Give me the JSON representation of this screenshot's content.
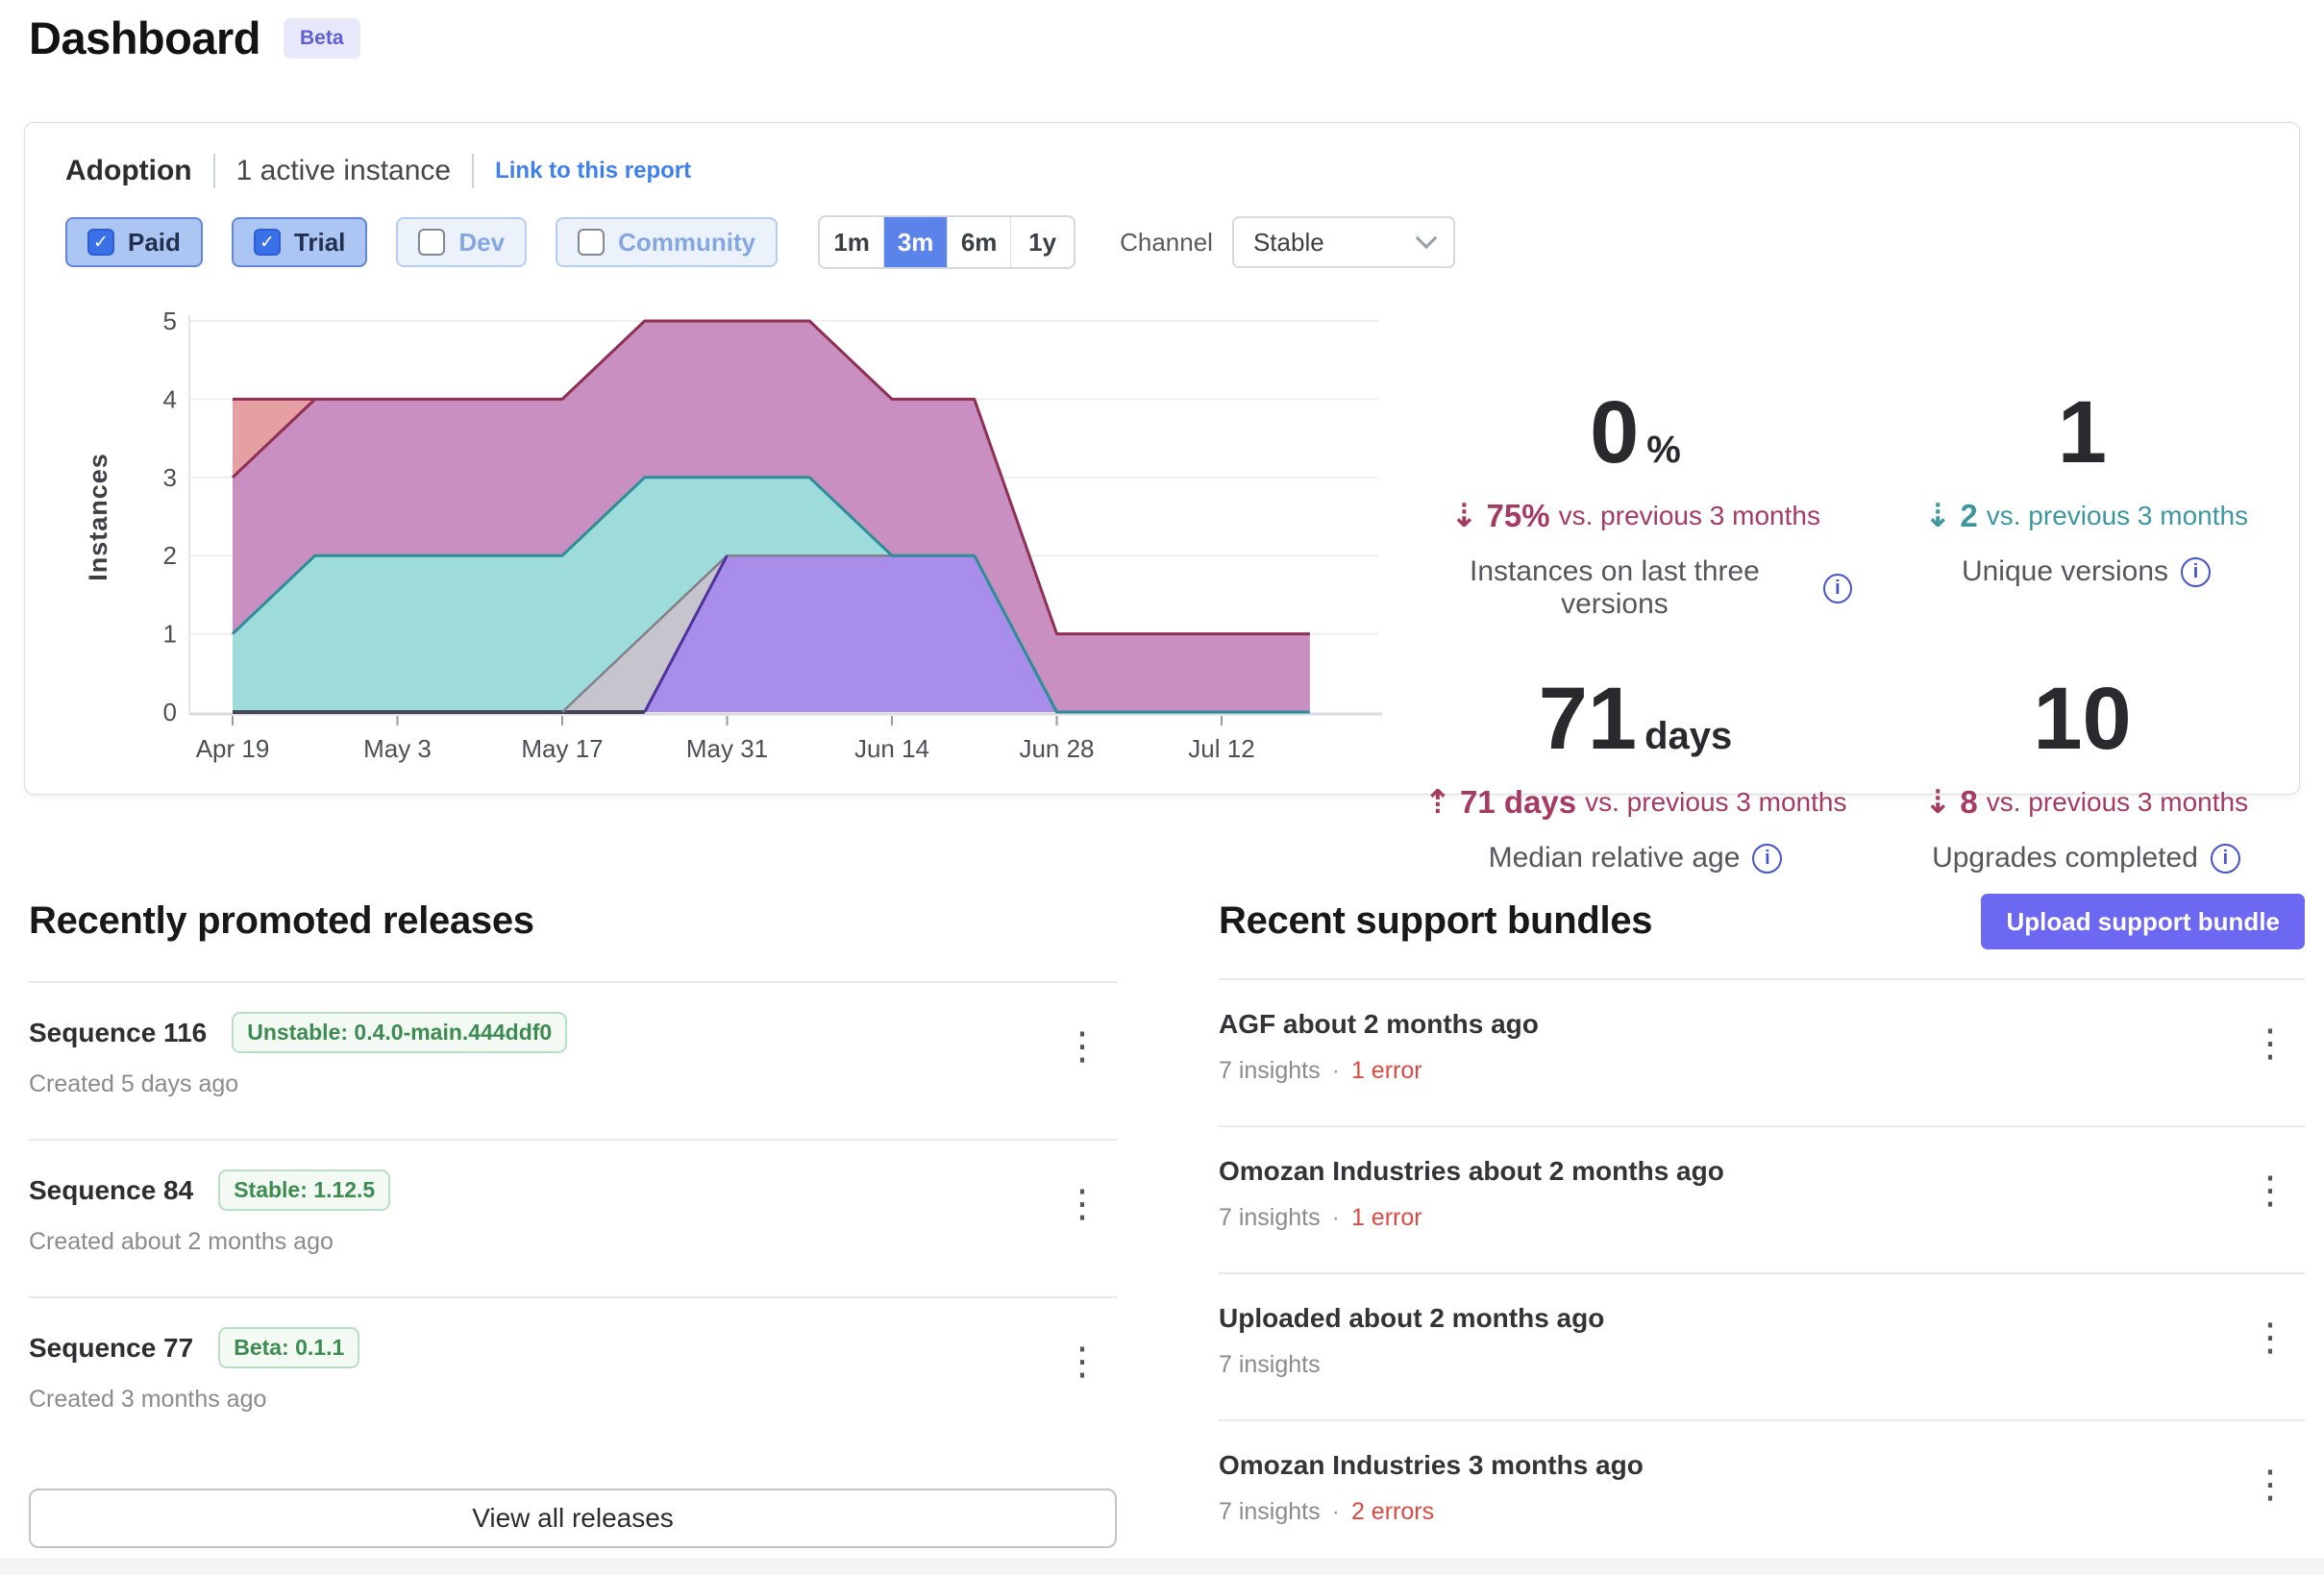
{
  "page": {
    "title": "Dashboard",
    "beta_badge": "Beta"
  },
  "icons": {
    "kebab": "⋮",
    "check": "✓",
    "arrow_down": "⇣",
    "arrow_up": "⇡",
    "info": "i",
    "dot": "·"
  },
  "colors": {
    "accent_blue": "#5b84ea",
    "link_blue": "#4080ee",
    "indigo_button": "#6d68f2",
    "trend_red": "#a53b5e",
    "trend_teal": "#3d96a0",
    "error_red": "#dd4a43",
    "badge_green": "#3e8b52",
    "beta_purple": "#5e5ed8"
  },
  "adoption": {
    "title": "Adoption",
    "subtitle": "1 active instance",
    "link": "Link to this report",
    "filters": [
      {
        "label": "Paid",
        "checked": true
      },
      {
        "label": "Trial",
        "checked": true
      },
      {
        "label": "Dev",
        "checked": false
      },
      {
        "label": "Community",
        "checked": false
      }
    ],
    "ranges": [
      {
        "label": "1m",
        "active": false
      },
      {
        "label": "3m",
        "active": true
      },
      {
        "label": "6m",
        "active": false
      },
      {
        "label": "1y",
        "active": false
      }
    ],
    "channel_label": "Channel",
    "channel_value": "Stable",
    "stats": [
      {
        "value": "0",
        "unit": "%",
        "direction": "down",
        "delta": "75%",
        "suffix": "vs. previous 3 months",
        "color": "#a53b5e",
        "label": "Instances on last three versions"
      },
      {
        "value": "1",
        "unit": "",
        "direction": "down",
        "delta": "2",
        "suffix": "vs. previous 3 months",
        "color": "#3d96a0",
        "label": "Unique versions"
      },
      {
        "value": "71",
        "unit": "days",
        "direction": "up",
        "delta": "71 days",
        "suffix": "vs. previous 3 months",
        "color": "#a53b5e",
        "label": "Median relative age"
      },
      {
        "value": "10",
        "unit": "",
        "direction": "down",
        "delta": "8",
        "suffix": "vs. previous 3 months",
        "color": "#a53b5e",
        "label": "Upgrades completed"
      }
    ]
  },
  "chart_data": {
    "type": "area",
    "title": "Adoption instances by version (stacked)",
    "ylabel": "Instances",
    "ylim": [
      0,
      5
    ],
    "yticks": [
      0,
      1,
      2,
      3,
      4,
      5
    ],
    "xtick_labels": [
      "Apr 19",
      "May 3",
      "May 17",
      "May 31",
      "Jun 14",
      "Jun 28",
      "Jul 12"
    ],
    "xtick_days": [
      0,
      14,
      28,
      42,
      56,
      70,
      84
    ],
    "x_unit": "days since Apr 19",
    "xmax_day": 91.5,
    "grid": "horizontal",
    "legend": "none",
    "bands": [
      {
        "name": "version-band-salmon",
        "fill": "#e6a0a3",
        "points": [
          [
            0,
            3
          ],
          [
            0,
            4
          ],
          [
            7,
            4
          ]
        ]
      },
      {
        "name": "version-band-mauve",
        "fill": "#c98fc1",
        "points": [
          [
            0,
            3
          ],
          [
            7,
            4
          ],
          [
            28,
            4
          ],
          [
            35,
            5
          ],
          [
            49,
            5
          ],
          [
            56,
            4
          ],
          [
            63,
            4
          ],
          [
            70,
            1
          ],
          [
            91.5,
            1
          ],
          [
            91.5,
            0
          ],
          [
            70,
            0
          ],
          [
            63,
            2
          ],
          [
            56,
            2
          ],
          [
            49,
            3
          ],
          [
            35,
            3
          ],
          [
            28,
            2
          ],
          [
            7,
            2
          ],
          [
            0,
            1
          ]
        ]
      },
      {
        "name": "version-band-teal",
        "fill": "#9edcdb",
        "points": [
          [
            0,
            1
          ],
          [
            7,
            2
          ],
          [
            28,
            2
          ],
          [
            35,
            3
          ],
          [
            49,
            3
          ],
          [
            56,
            2
          ],
          [
            63,
            2
          ],
          [
            70,
            0
          ],
          [
            91.5,
            0
          ],
          [
            70,
            0
          ],
          [
            63,
            2
          ],
          [
            42,
            2
          ],
          [
            28,
            0
          ],
          [
            0,
            0
          ]
        ]
      },
      {
        "name": "version-band-gray",
        "fill": "#c6c4cc",
        "points": [
          [
            28,
            0
          ],
          [
            42,
            2
          ],
          [
            35,
            0
          ]
        ]
      },
      {
        "name": "version-band-violet",
        "fill": "#a88dea",
        "points": [
          [
            35,
            0
          ],
          [
            42,
            2
          ],
          [
            63,
            2
          ],
          [
            70,
            0
          ]
        ]
      }
    ],
    "lines": [
      {
        "name": "zero-baseline-series",
        "stroke": "#45455a",
        "width": 4,
        "points": [
          [
            0,
            0
          ],
          [
            35,
            0
          ]
        ]
      },
      {
        "name": "gray-series-top",
        "stroke": "#82808a",
        "width": 2.5,
        "points": [
          [
            28,
            0
          ],
          [
            42,
            2
          ],
          [
            63,
            2
          ],
          [
            70,
            0
          ]
        ]
      },
      {
        "name": "violet-series-edge",
        "stroke": "#4d339b",
        "width": 3,
        "points": [
          [
            35,
            0
          ],
          [
            42,
            2
          ]
        ]
      },
      {
        "name": "teal-series-top",
        "stroke": "#2c8e96",
        "width": 3,
        "points": [
          [
            0,
            1
          ],
          [
            7,
            2
          ],
          [
            28,
            2
          ],
          [
            35,
            3
          ],
          [
            49,
            3
          ],
          [
            56,
            2
          ],
          [
            63,
            2
          ],
          [
            70,
            0
          ],
          [
            91.5,
            0
          ]
        ]
      },
      {
        "name": "total-top",
        "stroke": "#8e2f54",
        "width": 3,
        "points": [
          [
            0,
            3
          ],
          [
            7,
            4
          ],
          [
            28,
            4
          ],
          [
            35,
            5
          ],
          [
            49,
            5
          ],
          [
            56,
            4
          ],
          [
            63,
            4
          ],
          [
            70,
            1
          ],
          [
            91.5,
            1
          ]
        ]
      },
      {
        "name": "salmon-series-top",
        "stroke": "#8e2f54",
        "width": 3,
        "points": [
          [
            0,
            4
          ],
          [
            7,
            4
          ]
        ]
      }
    ]
  },
  "releases": {
    "heading": "Recently promoted releases",
    "view_all": "View all releases",
    "items": [
      {
        "title": "Sequence 116",
        "badge": "Unstable: 0.4.0-main.444ddf0",
        "created": "Created 5 days ago"
      },
      {
        "title": "Sequence 84",
        "badge": "Stable: 1.12.5",
        "created": "Created about 2 months ago"
      },
      {
        "title": "Sequence 77",
        "badge": "Beta: 0.1.1",
        "created": "Created 3 months ago"
      }
    ]
  },
  "bundles": {
    "heading": "Recent support bundles",
    "upload_button": "Upload support bundle",
    "items": [
      {
        "title": "AGF about 2 months ago",
        "insights": "7 insights",
        "dot": "·",
        "errors": "1 error"
      },
      {
        "title": "Omozan Industries about 2 months ago",
        "insights": "7 insights",
        "dot": "·",
        "errors": "1 error"
      },
      {
        "title": "Uploaded about 2 months ago",
        "insights": "7 insights",
        "dot": "",
        "errors": ""
      },
      {
        "title": "Omozan Industries 3 months ago",
        "insights": "7 insights",
        "dot": "·",
        "errors": "2 errors"
      }
    ]
  }
}
